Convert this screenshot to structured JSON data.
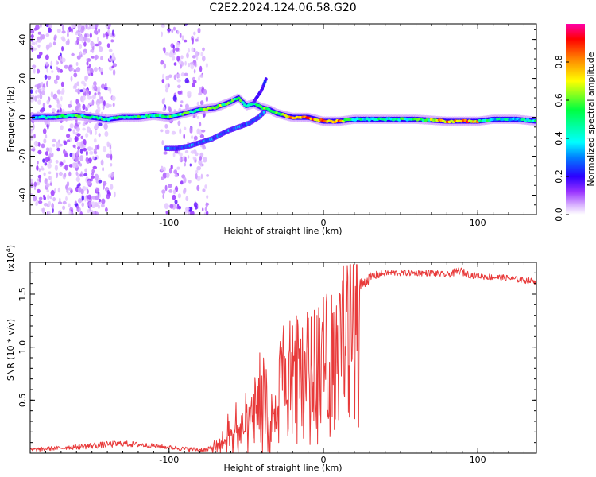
{
  "title": "C2E2.2024.124.06.58.G20",
  "chart_data": [
    {
      "type": "heatmap",
      "title": "C2E2.2024.124.06.58.G20",
      "xlabel": "Height of straight line (km)",
      "ylabel": "Frequency (Hz)",
      "xlim": [
        -190,
        138
      ],
      "ylim": [
        -50,
        48
      ],
      "x_ticks": [
        -100,
        0,
        100
      ],
      "x_tick_labels": [
        "-100",
        "0",
        "100"
      ],
      "y_ticks": [
        -40,
        -20,
        0,
        20,
        40
      ],
      "y_tick_labels": [
        "-40",
        "-20",
        "0",
        "20",
        "40"
      ],
      "colorbar": {
        "label": "Normalized spectral amplitude",
        "range": [
          0,
          1
        ],
        "ticks": [
          0.0,
          0.2,
          0.4,
          0.6,
          0.8
        ],
        "tick_labels": [
          "0.0",
          "0.2",
          "0.4",
          "0.6",
          "0.8"
        ],
        "colors": [
          "#ffffff",
          "#c080ff",
          "#7f00ff",
          "#0000ff",
          "#00ffff",
          "#00ff00",
          "#ffff00",
          "#ff8000",
          "#ff0000",
          "#ff00aa"
        ]
      },
      "main_track": [
        {
          "x": -188,
          "y": 0,
          "a": 0.35
        },
        {
          "x": -175,
          "y": 0,
          "a": 0.45
        },
        {
          "x": -160,
          "y": 1,
          "a": 0.5
        },
        {
          "x": -150,
          "y": 0,
          "a": 0.45
        },
        {
          "x": -140,
          "y": -1,
          "a": 0.5
        },
        {
          "x": -130,
          "y": 0,
          "a": 0.45
        },
        {
          "x": -120,
          "y": 0,
          "a": 0.5
        },
        {
          "x": -110,
          "y": 1,
          "a": 0.45
        },
        {
          "x": -100,
          "y": 0,
          "a": 0.5
        },
        {
          "x": -90,
          "y": 2,
          "a": 0.5
        },
        {
          "x": -80,
          "y": 4,
          "a": 0.55
        },
        {
          "x": -70,
          "y": 5,
          "a": 0.6
        },
        {
          "x": -60,
          "y": 8,
          "a": 0.55
        },
        {
          "x": -55,
          "y": 10,
          "a": 0.5
        },
        {
          "x": -50,
          "y": 6,
          "a": 0.5
        },
        {
          "x": -45,
          "y": 7,
          "a": 0.5
        },
        {
          "x": -40,
          "y": 5,
          "a": 0.55
        },
        {
          "x": -35,
          "y": 4,
          "a": 0.55
        },
        {
          "x": -30,
          "y": 2,
          "a": 0.6
        },
        {
          "x": -20,
          "y": 0,
          "a": 0.8
        },
        {
          "x": -10,
          "y": 0,
          "a": 0.75
        },
        {
          "x": 0,
          "y": -2,
          "a": 0.7
        },
        {
          "x": 10,
          "y": -2,
          "a": 0.65
        },
        {
          "x": 20,
          "y": -1,
          "a": 0.45
        },
        {
          "x": 40,
          "y": -1,
          "a": 0.45
        },
        {
          "x": 60,
          "y": -1,
          "a": 0.5
        },
        {
          "x": 80,
          "y": -2,
          "a": 0.6
        },
        {
          "x": 100,
          "y": -2,
          "a": 0.55
        },
        {
          "x": 110,
          "y": -1,
          "a": 0.4
        },
        {
          "x": 125,
          "y": -1,
          "a": 0.4
        },
        {
          "x": 138,
          "y": -2,
          "a": 0.45
        }
      ],
      "secondary_track": [
        {
          "x": -102,
          "y": -16,
          "a": 0.45
        },
        {
          "x": -95,
          "y": -16,
          "a": 0.45
        },
        {
          "x": -88,
          "y": -15,
          "a": 0.45
        },
        {
          "x": -80,
          "y": -13,
          "a": 0.45
        },
        {
          "x": -72,
          "y": -11,
          "a": 0.45
        },
        {
          "x": -62,
          "y": -7,
          "a": 0.45
        },
        {
          "x": -55,
          "y": -5,
          "a": 0.45
        },
        {
          "x": -48,
          "y": -3,
          "a": 0.45
        },
        {
          "x": -42,
          "y": 0,
          "a": 0.45
        },
        {
          "x": -38,
          "y": 3,
          "a": 0.45
        }
      ],
      "branch_track": [
        {
          "x": -45,
          "y": 8,
          "a": 0.35
        },
        {
          "x": -40,
          "y": 14,
          "a": 0.35
        },
        {
          "x": -37,
          "y": 20,
          "a": 0.35
        }
      ]
    },
    {
      "type": "line",
      "xlabel": "Height of straight line (km)",
      "ylabel": "SNR (10 * v/v)",
      "y_scale_label": "(x10^4)",
      "xlim": [
        -190,
        138
      ],
      "ylim": [
        0,
        1.8
      ],
      "x_ticks": [
        -100,
        0,
        100
      ],
      "x_tick_labels": [
        "-100",
        "0",
        "100"
      ],
      "y_ticks": [
        0.5,
        1.0,
        1.5
      ],
      "y_tick_labels": [
        "0.5",
        "1.0",
        "1.5"
      ],
      "series": [
        {
          "name": "SNR",
          "color": "#e83a3a",
          "x": [
            -190,
            -170,
            -150,
            -130,
            -110,
            -90,
            -75,
            -68,
            -62,
            -56,
            -50,
            -45,
            -40,
            -35,
            -30,
            -25,
            -20,
            -15,
            -10,
            -5,
            0,
            5,
            10,
            15,
            20,
            25,
            30,
            35,
            40,
            50,
            60,
            70,
            80,
            88,
            95,
            100,
            110,
            120,
            130,
            138
          ],
          "y": [
            0.03,
            0.05,
            0.07,
            0.09,
            0.07,
            0.04,
            0.03,
            0.08,
            0.15,
            0.22,
            0.3,
            0.4,
            0.6,
            0.25,
            0.5,
            0.8,
            0.85,
            0.9,
            0.95,
            1.0,
            1.05,
            1.15,
            1.25,
            1.4,
            1.5,
            1.6,
            1.65,
            1.68,
            1.7,
            1.7,
            1.7,
            1.7,
            1.68,
            1.72,
            1.68,
            1.67,
            1.66,
            1.65,
            1.63,
            1.62
          ],
          "noise": [
            0.02,
            0.02,
            0.03,
            0.03,
            0.02,
            0.02,
            0.02,
            0.1,
            0.25,
            0.35,
            0.45,
            0.45,
            0.65,
            0.3,
            0.55,
            0.6,
            0.5,
            0.45,
            0.4,
            0.35,
            0.3,
            0.25,
            0.25,
            0.2,
            0.12,
            0.06,
            0.05,
            0.04,
            0.03,
            0.03,
            0.03,
            0.03,
            0.03,
            0.04,
            0.03,
            0.03,
            0.03,
            0.03,
            0.03,
            0.03
          ]
        }
      ]
    }
  ]
}
